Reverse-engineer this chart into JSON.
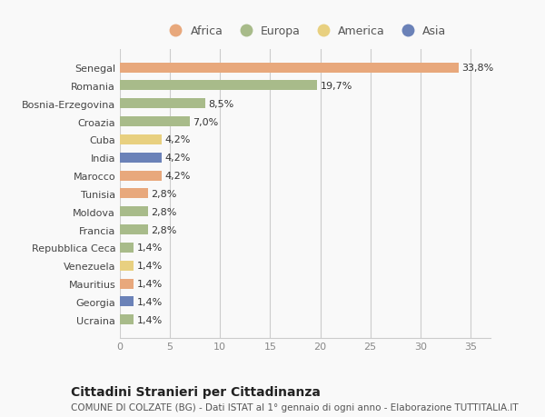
{
  "categories": [
    "Ucraina",
    "Georgia",
    "Mauritius",
    "Venezuela",
    "Repubblica Ceca",
    "Francia",
    "Moldova",
    "Tunisia",
    "Marocco",
    "India",
    "Cuba",
    "Croazia",
    "Bosnia-Erzegovina",
    "Romania",
    "Senegal"
  ],
  "values": [
    1.4,
    1.4,
    1.4,
    1.4,
    1.4,
    2.8,
    2.8,
    2.8,
    4.2,
    4.2,
    4.2,
    7.0,
    8.5,
    19.7,
    33.8
  ],
  "bar_colors": [
    "#a8bb8a",
    "#6b82b8",
    "#e8a87c",
    "#e8d080",
    "#a8bb8a",
    "#a8bb8a",
    "#a8bb8a",
    "#e8a87c",
    "#e8a87c",
    "#6b82b8",
    "#e8d080",
    "#a8bb8a",
    "#a8bb8a",
    "#a8bb8a",
    "#e8a87c"
  ],
  "labels": [
    "1,4%",
    "1,4%",
    "1,4%",
    "1,4%",
    "1,4%",
    "2,8%",
    "2,8%",
    "2,8%",
    "4,2%",
    "4,2%",
    "4,2%",
    "7,0%",
    "8,5%",
    "19,7%",
    "33,8%"
  ],
  "legend_labels": [
    "Africa",
    "Europa",
    "America",
    "Asia"
  ],
  "legend_colors": [
    "#e8a87c",
    "#a8bb8a",
    "#e8d080",
    "#6b82b8"
  ],
  "title": "Cittadini Stranieri per Cittadinanza",
  "subtitle": "COMUNE DI COLZATE (BG) - Dati ISTAT al 1° gennaio di ogni anno - Elaborazione TUTTITALIA.IT",
  "xlim": [
    0,
    37
  ],
  "xticks": [
    0,
    5,
    10,
    15,
    20,
    25,
    30,
    35
  ],
  "background_color": "#f9f9f9",
  "bar_height": 0.55,
  "label_fontsize": 8,
  "title_fontsize": 10,
  "subtitle_fontsize": 7.5,
  "tick_fontsize": 8
}
